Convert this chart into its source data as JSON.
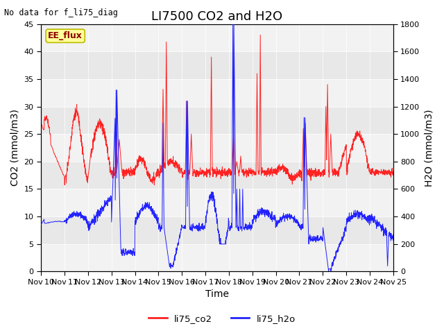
{
  "title": "LI7500 CO2 and H2O",
  "top_left_text": "No data for f_li75_diag",
  "xlabel": "Time",
  "ylabel_left": "CO2 (mmol/m3)",
  "ylabel_right": "H2O (mmol/m3)",
  "ylim_left": [
    0,
    45
  ],
  "ylim_right": [
    0,
    1800
  ],
  "yticks_left": [
    0,
    5,
    10,
    15,
    20,
    25,
    30,
    35,
    40,
    45
  ],
  "yticks_right": [
    0,
    200,
    400,
    600,
    800,
    1000,
    1200,
    1400,
    1600,
    1800
  ],
  "xticklabels": [
    "Nov 10",
    "Nov 11",
    "Nov 12",
    "Nov 13",
    "Nov 14",
    "Nov 15",
    "Nov 16",
    "Nov 17",
    "Nov 18",
    "Nov 19",
    "Nov 20",
    "Nov 21",
    "Nov 22",
    "Nov 23",
    "Nov 24",
    "Nov 25"
  ],
  "color_co2": "#FF2222",
  "color_h2o": "#2222FF",
  "legend_label_co2": "li75_co2",
  "legend_label_h2o": "li75_h2o",
  "annotation_label": "EE_flux",
  "annotation_bg": "#FFFF99",
  "annotation_border": "#BBBB00",
  "background_color": "#E8E8E8",
  "stripe_light": "#F2F2F2",
  "h2o_scale": 40.0,
  "title_fontsize": 13,
  "axis_label_fontsize": 10,
  "tick_fontsize": 8
}
